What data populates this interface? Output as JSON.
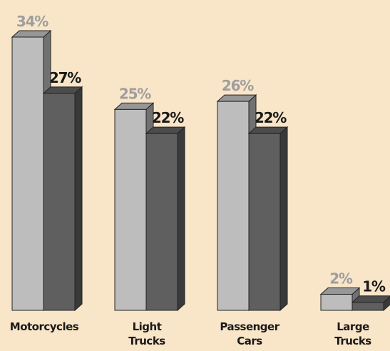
{
  "chart_data": {
    "type": "bar",
    "categories": [
      [
        "Motorcycles"
      ],
      [
        "Light",
        "Trucks"
      ],
      [
        "Passenger",
        "Cars"
      ],
      [
        "Large",
        "Trucks"
      ]
    ],
    "series": [
      {
        "values": [
          34,
          25,
          26,
          2
        ],
        "labels": [
          "34%",
          "25%",
          "26%",
          "2%"
        ],
        "color": "#bdbdbd",
        "label_color": "#9e9e9e"
      },
      {
        "values": [
          27,
          22,
          22,
          1
        ],
        "labels": [
          "27%",
          "22%",
          "22%",
          "1%"
        ],
        "color": "#5f5f5f",
        "label_color": "#1a1a1a"
      }
    ],
    "ylim": [
      0,
      34
    ],
    "grid": false,
    "legend": false,
    "background": "#f9e5c8"
  }
}
